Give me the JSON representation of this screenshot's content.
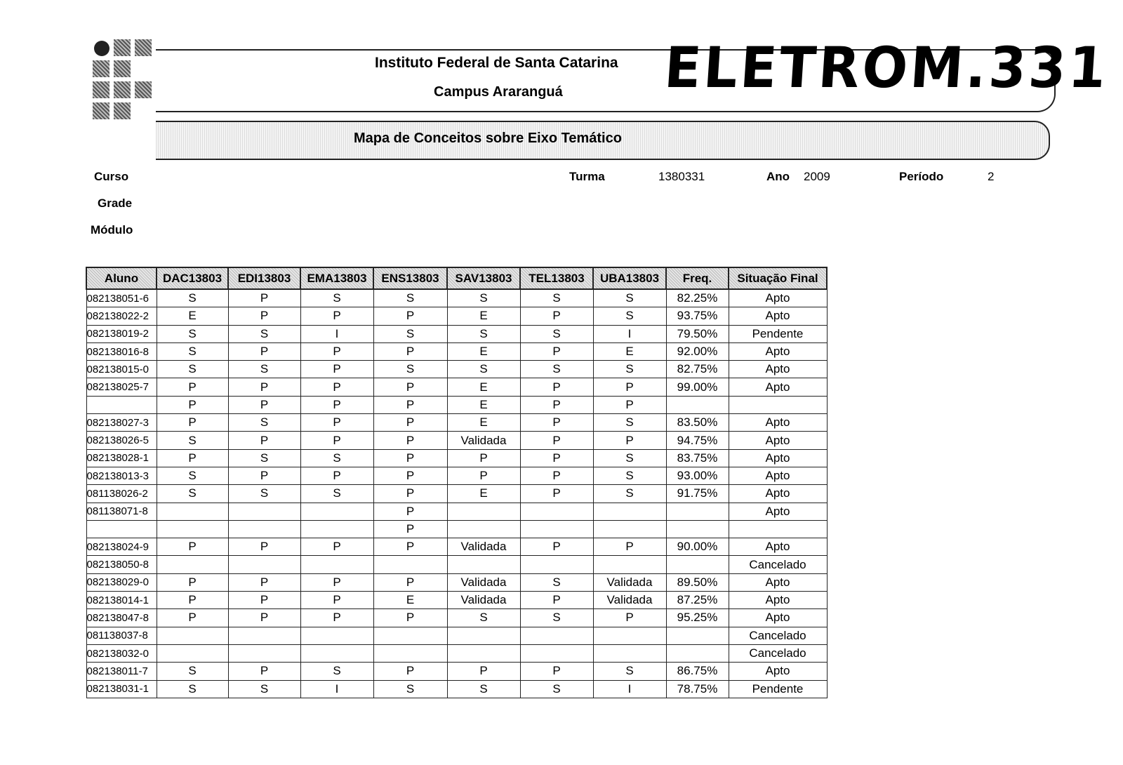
{
  "header": {
    "institution": "Instituto Federal de Santa Catarina",
    "campus": "Campus Araranguá",
    "title": "Mapa de Conceitos sobre Eixo Temático",
    "handwritten_note": "ELETROM.331"
  },
  "info": {
    "curso_label": "Curso",
    "grade_label": "Grade",
    "modulo_label": "Módulo",
    "turma_label": "Turma",
    "turma": "1380331",
    "ano_label": "Ano",
    "ano": "2009",
    "periodo_label": "Período",
    "periodo": "2"
  },
  "table": {
    "columns": [
      "Aluno",
      "DAC13803",
      "EDI13803",
      "EMA13803",
      "ENS13803",
      "SAV13803",
      "TEL13803",
      "UBA13803",
      "Freq.",
      "Situação Final"
    ],
    "rows": [
      [
        "082138051-6",
        "S",
        "P",
        "S",
        "S",
        "S",
        "S",
        "S",
        "82.25%",
        "Apto"
      ],
      [
        "082138022-2",
        "E",
        "P",
        "P",
        "P",
        "E",
        "P",
        "S",
        "93.75%",
        "Apto"
      ],
      [
        "082138019-2",
        "S",
        "S",
        "I",
        "S",
        "S",
        "S",
        "I",
        "79.50%",
        "Pendente"
      ],
      [
        "082138016-8",
        "S",
        "P",
        "P",
        "P",
        "E",
        "P",
        "E",
        "92.00%",
        "Apto"
      ],
      [
        "082138015-0",
        "S",
        "S",
        "P",
        "S",
        "S",
        "S",
        "S",
        "82.75%",
        "Apto"
      ],
      [
        "082138025-7",
        "P",
        "P",
        "P",
        "P",
        "E",
        "P",
        "P",
        "99.00%",
        "Apto"
      ],
      [
        "",
        "P",
        "P",
        "P",
        "P",
        "E",
        "P",
        "P",
        "",
        ""
      ],
      [
        "082138027-3",
        "P",
        "S",
        "P",
        "P",
        "E",
        "P",
        "S",
        "83.50%",
        "Apto"
      ],
      [
        "082138026-5",
        "S",
        "P",
        "P",
        "P",
        "Validada",
        "P",
        "P",
        "94.75%",
        "Apto"
      ],
      [
        "082138028-1",
        "P",
        "S",
        "S",
        "P",
        "P",
        "P",
        "S",
        "83.75%",
        "Apto"
      ],
      [
        "082138013-3",
        "S",
        "P",
        "P",
        "P",
        "P",
        "P",
        "S",
        "93.00%",
        "Apto"
      ],
      [
        "081138026-2",
        "S",
        "S",
        "S",
        "P",
        "E",
        "P",
        "S",
        "91.75%",
        "Apto"
      ],
      [
        "081138071-8",
        "",
        "",
        "",
        "P",
        "",
        "",
        "",
        "",
        "Apto"
      ],
      [
        "",
        "",
        "",
        "",
        "P",
        "",
        "",
        "",
        "",
        ""
      ],
      [
        "082138024-9",
        "P",
        "P",
        "P",
        "P",
        "Validada",
        "P",
        "P",
        "90.00%",
        "Apto"
      ],
      [
        "082138050-8",
        "",
        "",
        "",
        "",
        "",
        "",
        "",
        "",
        "Cancelado"
      ],
      [
        "082138029-0",
        "P",
        "P",
        "P",
        "P",
        "Validada",
        "S",
        "Validada",
        "89.50%",
        "Apto"
      ],
      [
        "082138014-1",
        "P",
        "P",
        "P",
        "E",
        "Validada",
        "P",
        "Validada",
        "87.25%",
        "Apto"
      ],
      [
        "082138047-8",
        "P",
        "P",
        "P",
        "P",
        "S",
        "S",
        "P",
        "95.25%",
        "Apto"
      ],
      [
        "081138037-8",
        "",
        "",
        "",
        "",
        "",
        "",
        "",
        "",
        "Cancelado"
      ],
      [
        "082138032-0",
        "",
        "",
        "",
        "",
        "",
        "",
        "",
        "",
        "Cancelado"
      ],
      [
        "082138011-7",
        "S",
        "P",
        "S",
        "P",
        "P",
        "P",
        "S",
        "86.75%",
        "Apto"
      ],
      [
        "082138031-1",
        "S",
        "S",
        "I",
        "S",
        "S",
        "S",
        "I",
        "78.75%",
        "Pendente"
      ]
    ]
  }
}
